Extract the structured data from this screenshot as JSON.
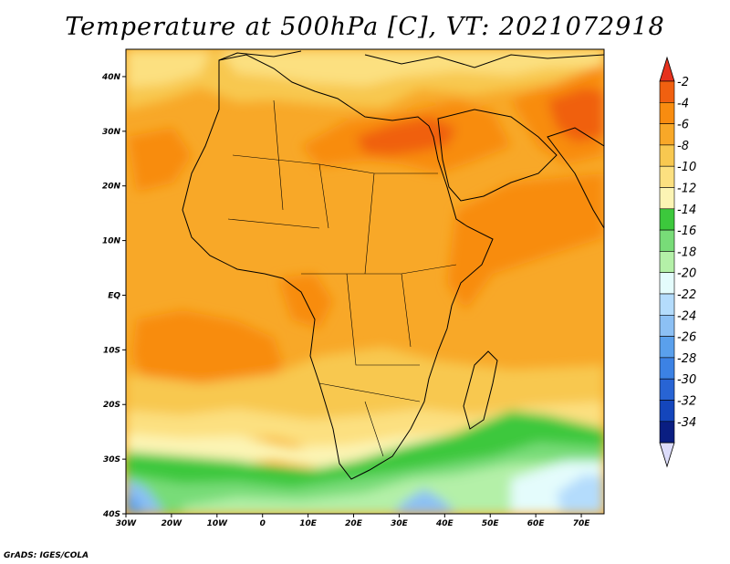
{
  "title": "Temperature at 500hPa [C], VT: 2021072918",
  "credit": "GrADS: IGES/COLA",
  "map": {
    "lon_range": [
      -30,
      75
    ],
    "lat_range": [
      -40,
      45
    ],
    "lon_ticks": [
      {
        "value": -30,
        "label": "30W"
      },
      {
        "value": -20,
        "label": "20W"
      },
      {
        "value": -10,
        "label": "10W"
      },
      {
        "value": 0,
        "label": "0"
      },
      {
        "value": 10,
        "label": "10E"
      },
      {
        "value": 20,
        "label": "20E"
      },
      {
        "value": 30,
        "label": "30E"
      },
      {
        "value": 40,
        "label": "40E"
      },
      {
        "value": 50,
        "label": "50E"
      },
      {
        "value": 60,
        "label": "60E"
      },
      {
        "value": 70,
        "label": "70E"
      }
    ],
    "lat_ticks": [
      {
        "value": 40,
        "label": "40N"
      },
      {
        "value": 30,
        "label": "30N"
      },
      {
        "value": 20,
        "label": "20N"
      },
      {
        "value": 10,
        "label": "10N"
      },
      {
        "value": 0,
        "label": "EQ"
      },
      {
        "value": -10,
        "label": "10S"
      },
      {
        "value": -20,
        "label": "20S"
      },
      {
        "value": -30,
        "label": "30S"
      },
      {
        "value": -40,
        "label": "40S"
      }
    ]
  },
  "colorbar": {
    "levels": [
      {
        "label": "-2",
        "color": "#f06010"
      },
      {
        "label": "-4",
        "color": "#f88c10"
      },
      {
        "label": "-6",
        "color": "#f8a828"
      },
      {
        "label": "-8",
        "color": "#f8c850"
      },
      {
        "label": "-10",
        "color": "#fce080"
      },
      {
        "label": "-12",
        "color": "#fcf4b4"
      },
      {
        "label": "-14",
        "color": "#3cc83c"
      },
      {
        "label": "-16",
        "color": "#78dc78"
      },
      {
        "label": "-18",
        "color": "#b4f0a8"
      },
      {
        "label": "-20",
        "color": "#e4fcfc"
      },
      {
        "label": "-22",
        "color": "#b4dcfc"
      },
      {
        "label": "-24",
        "color": "#8cc0f4"
      },
      {
        "label": "-26",
        "color": "#5aa0ec"
      },
      {
        "label": "-28",
        "color": "#3c82e4"
      },
      {
        "label": "-30",
        "color": "#2864d4"
      },
      {
        "label": "-32",
        "color": "#1446bc"
      },
      {
        "label": "-34",
        "color": "#0a1e82"
      }
    ],
    "top_color": "#e6321e",
    "bottom_color": "#dcdcfa"
  }
}
